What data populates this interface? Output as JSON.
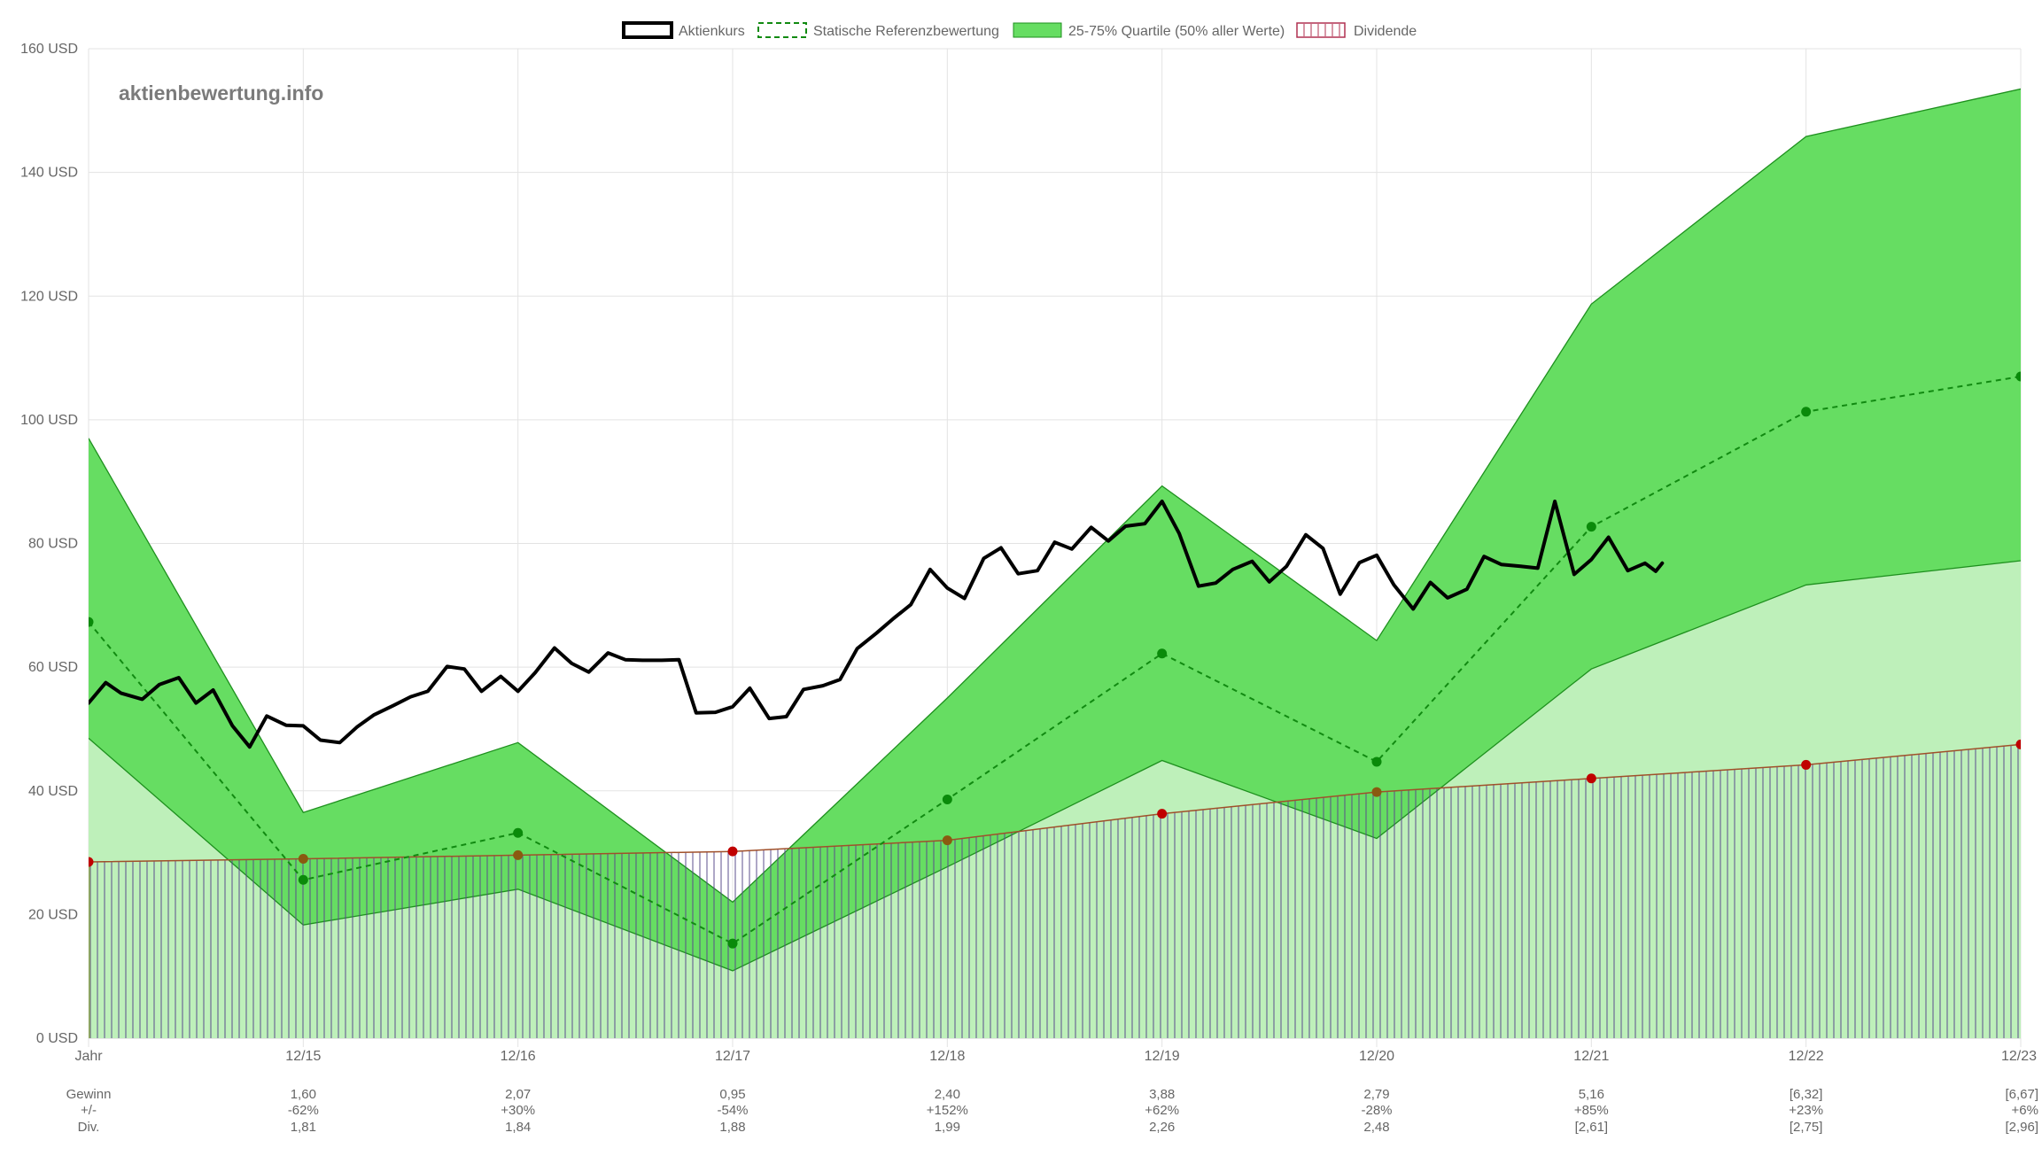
{
  "watermark": "aktienbewertung.info",
  "legend": [
    {
      "label": "Aktienkurs",
      "style": "price"
    },
    {
      "label": "Statische Referenzbewertung",
      "style": "reference"
    },
    {
      "label": "25-75% Quartile (50% aller Werte)",
      "style": "quartile"
    },
    {
      "label": "Dividende",
      "style": "dividend"
    }
  ],
  "colors": {
    "price": "#000000",
    "reference": "#118a11",
    "reference_point": "#0a8a0a",
    "quartile_upper_fill": "#66dd62",
    "quartile_lower_fill": "#bef0ba",
    "quartile_stroke": "#1e901e",
    "dividend_line": "#a0502a",
    "dividend_point": "#c00000",
    "dividend_hatch": "#5a4b8c",
    "grid": "#e3e3e3"
  },
  "chart_data": {
    "type": "line",
    "y_unit": "USD",
    "ylim": [
      0,
      160
    ],
    "yticks": [
      0,
      20,
      40,
      60,
      80,
      100,
      120,
      140,
      160
    ],
    "ytick_labels": [
      "0 USD",
      "20 USD",
      "40 USD",
      "60 USD",
      "80 USD",
      "100 USD",
      "120 USD",
      "140 USD",
      "160 USD"
    ],
    "xlim": [
      2014,
      2023
    ],
    "x_categories": [
      "Jahr",
      "12/15",
      "12/16",
      "12/17",
      "12/18",
      "12/19",
      "12/20",
      "12/21",
      "12/22",
      "12/23"
    ],
    "x_positions": [
      2014,
      2015,
      2016,
      2017,
      2018,
      2019,
      2020,
      2021,
      2022,
      2023
    ],
    "grid": true,
    "legend_position": "top-center",
    "quartile_75": [
      97,
      36.5,
      47.8,
      22,
      55,
      89.3,
      64.3,
      118.7,
      145.8,
      153.5
    ],
    "quartile_25": [
      48.5,
      18.3,
      24.1,
      10.9,
      27.7,
      44.9,
      32.3,
      59.7,
      73.3,
      77.2
    ],
    "reference_valuation": [
      67.3,
      25.6,
      33.2,
      15.3,
      38.6,
      62.2,
      44.7,
      82.7,
      101.3,
      107
    ],
    "dividend": [
      28.5,
      29,
      29.6,
      30.2,
      32,
      36.3,
      39.8,
      42,
      44.2,
      47.5
    ],
    "share_price": {
      "x": [
        2014.0,
        2014.08,
        2014.15,
        2014.25,
        2014.33,
        2014.42,
        2014.5,
        2014.58,
        2014.67,
        2014.75,
        2014.83,
        2014.92,
        2015.0,
        2015.08,
        2015.17,
        2015.25,
        2015.33,
        2015.42,
        2015.5,
        2015.58,
        2015.67,
        2015.75,
        2015.83,
        2015.92,
        2016.0,
        2016.08,
        2016.17,
        2016.25,
        2016.33,
        2016.42,
        2016.5,
        2016.58,
        2016.67,
        2016.75,
        2016.83,
        2016.92,
        2017.0,
        2017.08,
        2017.17,
        2017.25,
        2017.33,
        2017.42,
        2017.5,
        2017.58,
        2017.67,
        2017.75,
        2017.83,
        2017.92,
        2018.0,
        2018.08,
        2018.17,
        2018.25,
        2018.33,
        2018.42,
        2018.5,
        2018.58,
        2018.67,
        2018.75,
        2018.83,
        2018.92,
        2019.0,
        2019.08,
        2019.17,
        2019.25,
        2019.33,
        2019.42,
        2019.5,
        2019.58,
        2019.67,
        2019.75,
        2019.83,
        2019.92,
        2020.0,
        2020.08,
        2020.17,
        2020.25,
        2020.33,
        2020.42,
        2020.5,
        2020.58,
        2020.67,
        2020.75,
        2020.83,
        2020.92,
        2021.0,
        2021.08,
        2021.17,
        2021.25,
        2021.3,
        2021.33
      ],
      "y": [
        54.2,
        57.5,
        55.8,
        54.8,
        57.2,
        58.3,
        54.2,
        56.3,
        50.5,
        47.1,
        52.1,
        50.6,
        50.5,
        48.2,
        47.8,
        50.3,
        52.3,
        53.8,
        55.2,
        56.1,
        60.1,
        59.7,
        56.1,
        58.5,
        56.1,
        59.1,
        63.1,
        60.6,
        59.2,
        62.3,
        61.2,
        61.1,
        61.1,
        61.2,
        52.6,
        52.7,
        53.6,
        56.6,
        51.7,
        52.0,
        56.4,
        57.0,
        58.0,
        63.0,
        65.5,
        67.9,
        70.1,
        75.8,
        72.8,
        71.1,
        77.6,
        79.3,
        75.1,
        75.6,
        80.2,
        79.1,
        82.6,
        80.4,
        82.8,
        83.2,
        86.8,
        81.6,
        73.1,
        73.6,
        75.8,
        77.1,
        73.8,
        76.3,
        81.4,
        79.2,
        71.8,
        76.9,
        78.1,
        73.3,
        69.4,
        73.7,
        71.2,
        72.6,
        77.9,
        76.6,
        76.3,
        76.0,
        86.8,
        75.0,
        77.4,
        81.0,
        75.6,
        76.8,
        75.5,
        76.8
      ]
    },
    "footer": {
      "row_labels": [
        "Gewinn",
        "+/-",
        "Div."
      ],
      "columns": [
        {
          "gewinn": "",
          "change": "",
          "div": ""
        },
        {
          "gewinn": "1,60",
          "change": "-62%",
          "div": "1,81"
        },
        {
          "gewinn": "2,07",
          "change": "+30%",
          "div": "1,84"
        },
        {
          "gewinn": "0,95",
          "change": "-54%",
          "div": "1,88"
        },
        {
          "gewinn": "2,40",
          "change": "+152%",
          "div": "1,99"
        },
        {
          "gewinn": "3,88",
          "change": "+62%",
          "div": "2,26"
        },
        {
          "gewinn": "2,79",
          "change": "-28%",
          "div": "2,48"
        },
        {
          "gewinn": "5,16",
          "change": "+85%",
          "div": "[2,61]"
        },
        {
          "gewinn": "[6,32]",
          "change": "+23%",
          "div": "[2,75]"
        },
        {
          "gewinn": "[6,67]",
          "change": "+6%",
          "div": "[2,96]"
        }
      ]
    }
  }
}
